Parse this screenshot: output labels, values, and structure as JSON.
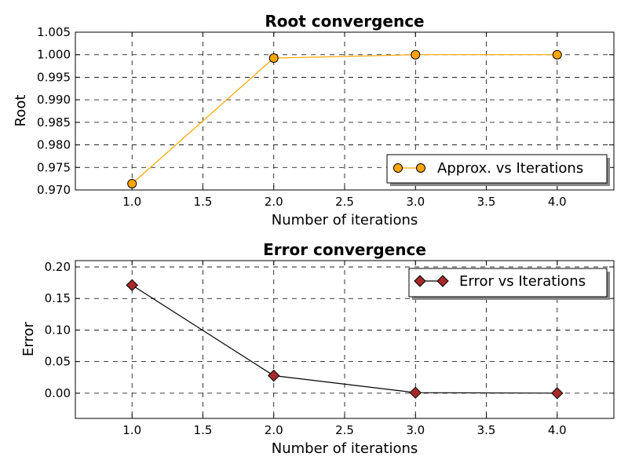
{
  "chart_data": [
    {
      "type": "line",
      "title": "Root convergence",
      "xlabel": "Number of iterations",
      "ylabel": "Root",
      "xlim": [
        0.6,
        4.4
      ],
      "ylim": [
        0.97,
        1.005
      ],
      "xticks": [
        "1.0",
        "1.5",
        "2.0",
        "2.5",
        "3.0",
        "3.5",
        "4.0"
      ],
      "yticks": [
        "0.970",
        "0.975",
        "0.980",
        "0.985",
        "0.990",
        "0.995",
        "1.000",
        "1.005"
      ],
      "grid": true,
      "legend_position": "lower-right",
      "series": [
        {
          "name": "Approx. vs Iterations",
          "x": [
            1,
            2,
            3,
            4
          ],
          "y": [
            0.9714,
            0.99925,
            1.0,
            1.0
          ],
          "line_color": "#ffa500",
          "marker": "circle",
          "marker_color": "#ffa500"
        }
      ]
    },
    {
      "type": "line",
      "title": "Error convergence",
      "xlabel": "Number of iterations",
      "ylabel": "Error",
      "xlim": [
        0.6,
        4.4
      ],
      "ylim": [
        -0.04,
        0.21
      ],
      "xticks": [
        "1.0",
        "1.5",
        "2.0",
        "2.5",
        "3.0",
        "3.5",
        "4.0"
      ],
      "yticks": [
        "0.00",
        "0.05",
        "0.10",
        "0.15",
        "0.20"
      ],
      "grid": true,
      "legend_position": "upper-right",
      "series": [
        {
          "name": "Error vs Iterations",
          "x": [
            1,
            2,
            3,
            4
          ],
          "y": [
            0.1711,
            0.0278,
            0.0008,
            0.0
          ],
          "line_color": "#000000",
          "marker": "diamond",
          "marker_color": "#a52a2a"
        }
      ]
    }
  ]
}
